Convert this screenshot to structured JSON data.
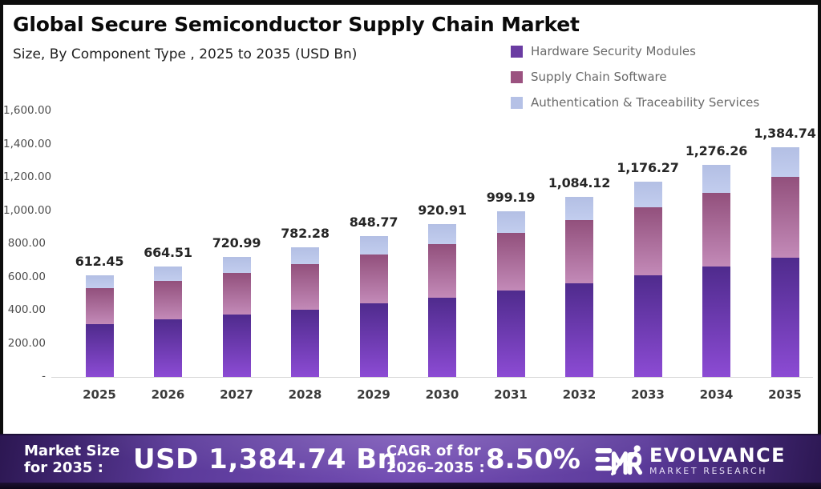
{
  "header": {
    "title": "Global Secure Semiconductor Supply Chain Market",
    "subtitle": "Size, By Component Type , 2025 to 2035 (USD Bn)"
  },
  "legend": {
    "items": [
      {
        "label": "Hardware Security Modules",
        "color": "#6a3ca2"
      },
      {
        "label": "Supply Chain Software",
        "color": "#9b5280"
      },
      {
        "label": "Authentication & Traceability Services",
        "color": "#b5c1e6"
      }
    ]
  },
  "chart_data": {
    "type": "bar",
    "stacked": true,
    "title": "Global Secure Semiconductor Supply Chain Market",
    "subtitle": "Size, By Component Type , 2025 to 2035 (USD Bn)",
    "unit": "USD Bn",
    "categories": [
      "2025",
      "2026",
      "2027",
      "2028",
      "2029",
      "2030",
      "2031",
      "2032",
      "2033",
      "2034",
      "2035"
    ],
    "series": [
      {
        "name": "Hardware Security Modules",
        "color_top": "#4f2b8d",
        "color_bottom": "#8c4bd4",
        "values": [
          318.47,
          345.55,
          374.91,
          406.78,
          441.36,
          478.87,
          519.58,
          563.74,
          611.66,
          663.66,
          720.06
        ]
      },
      {
        "name": "Supply Chain Software",
        "color_top": "#92507c",
        "color_bottom": "#c38ab8",
        "values": [
          214.36,
          232.58,
          252.35,
          273.8,
          297.07,
          322.32,
          349.72,
          379.44,
          411.69,
          446.69,
          484.66
        ]
      },
      {
        "name": "Authentication & Traceability Services",
        "color_top": "#b3bfe4",
        "color_bottom": "#c2cdee",
        "values": [
          79.62,
          86.38,
          93.73,
          101.7,
          110.34,
          119.72,
          129.89,
          140.94,
          152.92,
          165.91,
          180.02
        ]
      }
    ],
    "totals": [
      612.45,
      664.51,
      720.99,
      782.28,
      848.77,
      920.91,
      999.19,
      1084.12,
      1176.27,
      1276.26,
      1384.74
    ],
    "total_labels": [
      "612.45",
      "664.51",
      "720.99",
      "782.28",
      "848.77",
      "920.91",
      "999.19",
      "1,084.12",
      "1,176.27",
      "1,276.26",
      "1,384.74"
    ],
    "y_ticks": [
      {
        "label": "1,600.00",
        "value": 1600
      },
      {
        "label": "1,400.00",
        "value": 1400
      },
      {
        "label": "1,200.00",
        "value": 1200
      },
      {
        "label": "1,000.00",
        "value": 1000
      },
      {
        "label": "800.00",
        "value": 800
      },
      {
        "label": "600.00",
        "value": 600
      },
      {
        "label": "400.00",
        "value": 400
      },
      {
        "label": "200.00",
        "value": 200
      },
      {
        "label": "-",
        "value": 0
      }
    ],
    "ylim": [
      0,
      1600
    ],
    "grid": false,
    "legend_position": "top-right"
  },
  "footer": {
    "market_size_label_line1": "Market Size",
    "market_size_label_line2": "for 2035 :",
    "market_size_value": "USD 1,384.74 Bn",
    "cagr_label_line1": "CAGR of for",
    "cagr_label_line2": "2026–2035 :",
    "cagr_value": "8.50%",
    "brand": {
      "monogram": "EMR",
      "name": "EVOLVANCE",
      "tagline": "MARKET RESEARCH"
    }
  }
}
